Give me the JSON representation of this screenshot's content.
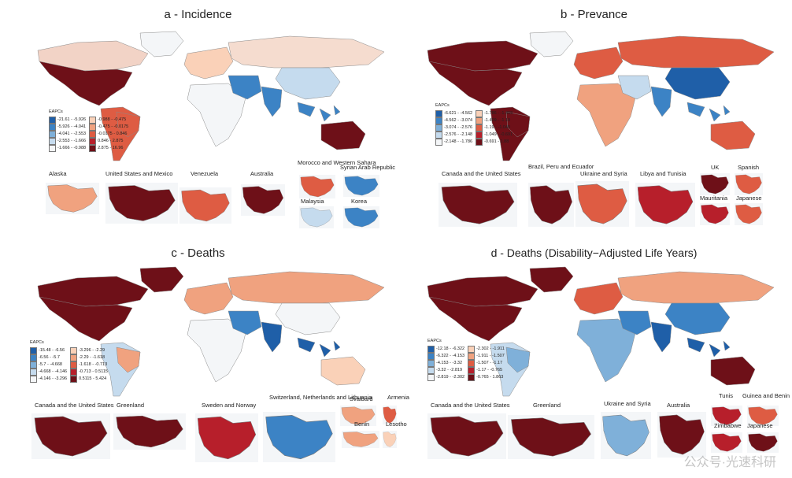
{
  "panels": [
    {
      "title": "a - Incidence",
      "legend_title": "EAPCs",
      "legend": [
        {
          "label": "-21.61 - -5.926",
          "color": "#1f5fa8"
        },
        {
          "label": "-5.926 - -4.041",
          "color": "#3c83c5"
        },
        {
          "label": "-4.041 - -2.553",
          "color": "#7fb0d9"
        },
        {
          "label": "-2.553 - -1.666",
          "color": "#c5dbee"
        },
        {
          "label": "-1.666 - -0.988",
          "color": "#f4f6f8"
        },
        {
          "label": "-0.988 - -0.475",
          "color": "#fad1b8"
        },
        {
          "label": "-0.475 - -0.0175",
          "color": "#f0a27f"
        },
        {
          "label": "-0.0175 - 0.846",
          "color": "#de5c43"
        },
        {
          "label": "0.846 - 2.875",
          "color": "#b71f2b"
        },
        {
          "label": "2.875 - 16.96",
          "color": "#6e1018"
        }
      ],
      "insets": [
        "Alaska",
        "United States and Mexico",
        "Venezuela",
        "Australia",
        "Morocco and Western Sahara",
        "Syrian Arab Republic",
        "Malaysia",
        "Korea"
      ]
    },
    {
      "title": "b - Prevance",
      "legend_title": "EAPCs",
      "legend": [
        {
          "label": "-6.621 - -4.562",
          "color": "#1f5fa8"
        },
        {
          "label": "-4.562 - -3.074",
          "color": "#3c83c5"
        },
        {
          "label": "-3.074 - -2.576",
          "color": "#7fb0d9"
        },
        {
          "label": "-2.576 - -2.148",
          "color": "#c5dbee"
        },
        {
          "label": "-2.148 - -1.786",
          "color": "#f4f6f8"
        },
        {
          "label": "-1.786 - -1.409",
          "color": "#fad1b8"
        },
        {
          "label": "-1.409 - -1.19",
          "color": "#f0a27f"
        },
        {
          "label": "-1.19 - -1.049",
          "color": "#de5c43"
        },
        {
          "label": "-1.049 - -0.691",
          "color": "#b71f2b"
        },
        {
          "label": "-0.691 - 1.88",
          "color": "#6e1018"
        }
      ],
      "insets": [
        "Canada and the United States",
        "Brazil, Peru and Ecuador",
        "Ukraine and Syria",
        "Libya and Tunisia",
        "UK",
        "Spanish",
        "Mauritania",
        "Japanese"
      ]
    },
    {
      "title": "c - Deaths",
      "legend_title": "EAPCs",
      "legend": [
        {
          "label": "-15.48 - -6.56",
          "color": "#1f5fa8"
        },
        {
          "label": "-6.56 - -5.7",
          "color": "#3c83c5"
        },
        {
          "label": "-5.7 - -4.668",
          "color": "#7fb0d9"
        },
        {
          "label": "-4.668 - -4.146",
          "color": "#c5dbee"
        },
        {
          "label": "-4.146 - -3.296",
          "color": "#f4f6f8"
        },
        {
          "label": "-3.296 - -2.29",
          "color": "#fad1b8"
        },
        {
          "label": "-2.29 - -1.618",
          "color": "#f0a27f"
        },
        {
          "label": "-1.618 - -0.713",
          "color": "#de5c43"
        },
        {
          "label": "-0.713 - 0.5115",
          "color": "#b71f2b"
        },
        {
          "label": "0.5115 - 5.424",
          "color": "#6e1018"
        }
      ],
      "insets": [
        "Canada and the United States",
        "Greenland",
        "Sweden and Norway",
        "Switzerland, Netherlands and Lithuania",
        "Svalbard",
        "Armenia",
        "Benin",
        "Lesotho"
      ]
    },
    {
      "title": "d - Deaths (Disability−Adjusted Life Years)",
      "legend_title": "EAPCs",
      "legend": [
        {
          "label": "-12.18 - -6.322",
          "color": "#1f5fa8"
        },
        {
          "label": "-6.322 - -4.153",
          "color": "#3c83c5"
        },
        {
          "label": "-4.153 - -3.32",
          "color": "#7fb0d9"
        },
        {
          "label": "-3.32 - -2.819",
          "color": "#c5dbee"
        },
        {
          "label": "-2.819 - -2.302",
          "color": "#f4f6f8"
        },
        {
          "label": "-2.302 - -1.911",
          "color": "#fad1b8"
        },
        {
          "label": "-1.911 - -1.507",
          "color": "#f0a27f"
        },
        {
          "label": "-1.507 - -1.17",
          "color": "#de5c43"
        },
        {
          "label": "-1.17 - -0.765",
          "color": "#b71f2b"
        },
        {
          "label": "-0.765 - 1.863",
          "color": "#6e1018"
        }
      ],
      "insets": [
        "Canada and the United States",
        "Greenland",
        "Ukraine and Syria",
        "Australia",
        "Tunis",
        "Guinea and Benin",
        "Zimbabwe",
        "Japanese"
      ]
    }
  ],
  "region_fills": {
    "a": {
      "north_america": "#6e1018",
      "canada": "#f2d3c6",
      "south_america": "#de5c43",
      "brazil": "#de5c43",
      "europe": "#fad1b8",
      "russia": "#f5dccf",
      "africa": "#f4f6f8",
      "middle_east": "#3c83c5",
      "china": "#c5dbee",
      "india": "#3c83c5",
      "australia": "#6e1018",
      "greenland": "#f4f6f8"
    },
    "b": {
      "north_america": "#6e1018",
      "canada": "#6e1018",
      "south_america": "#6e1018",
      "brazil": "#6e1018",
      "europe": "#de5c43",
      "russia": "#de5c43",
      "africa": "#f0a27f",
      "middle_east": "#c5dbee",
      "china": "#1f5fa8",
      "india": "#3c83c5",
      "australia": "#de5c43",
      "greenland": "#f4f6f8"
    },
    "c": {
      "north_america": "#6e1018",
      "canada": "#6e1018",
      "south_america": "#c5dbee",
      "brazil": "#f0a27f",
      "europe": "#f0a27f",
      "russia": "#f0a27f",
      "africa": "#f4f6f8",
      "middle_east": "#3c83c5",
      "china": "#f4f6f8",
      "india": "#1f5fa8",
      "australia": "#fad1b8",
      "greenland": "#6e1018"
    },
    "d": {
      "north_america": "#6e1018",
      "canada": "#6e1018",
      "south_america": "#c5dbee",
      "brazil": "#7fb0d9",
      "europe": "#de5c43",
      "russia": "#f0a27f",
      "africa": "#7fb0d9",
      "middle_east": "#3c83c5",
      "china": "#3c83c5",
      "india": "#1f5fa8",
      "australia": "#6e1018",
      "greenland": "#6e1018"
    }
  },
  "inset_fills": {
    "a": [
      "#f0a27f",
      "#6e1018",
      "#de5c43",
      "#6e1018",
      "#de5c43",
      "#3c83c5",
      "#c5dbee",
      "#3c83c5"
    ],
    "b": [
      "#6e1018",
      "#6e1018",
      "#de5c43",
      "#b71f2b",
      "#6e1018",
      "#de5c43",
      "#b71f2b",
      "#de5c43"
    ],
    "c": [
      "#6e1018",
      "#6e1018",
      "#b71f2b",
      "#3c83c5",
      "#f0a27f",
      "#de5c43",
      "#f0a27f",
      "#fad1b8"
    ],
    "d": [
      "#6e1018",
      "#6e1018",
      "#7fb0d9",
      "#6e1018",
      "#b71f2b",
      "#de5c43",
      "#b71f2b",
      "#6e1018"
    ]
  },
  "watermark": "公众号·光速科研"
}
